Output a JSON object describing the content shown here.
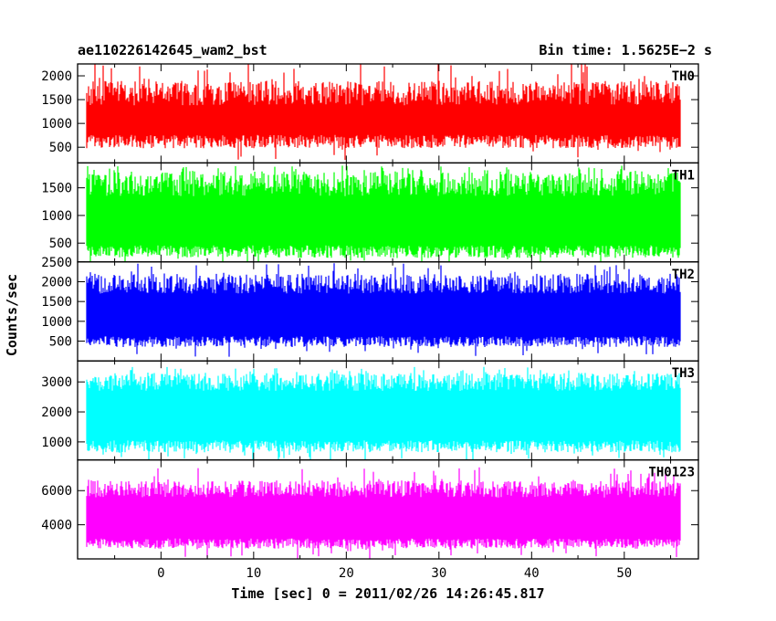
{
  "chart_data": {
    "type": "line",
    "title_left": "ae110226142645_wam2_bst",
    "title_right": "Bin time: 1.5625E−2 s",
    "ylabel": "Counts/sec",
    "xlabel": "Time [sec] 0 = 2011/02/26 14:26:45.817",
    "xlim": [
      -9,
      58
    ],
    "x_ticks": [
      0,
      10,
      20,
      30,
      40,
      50
    ],
    "data_range": [
      -8,
      56
    ],
    "panels": [
      {
        "name": "TH0",
        "color": "#ff0000",
        "ylim": [
          170,
          2250
        ],
        "yticks": [
          500,
          1000,
          1500,
          2000
        ],
        "base": [
          480,
          760
        ],
        "peak": [
          1380,
          1900
        ],
        "max": 2300
      },
      {
        "name": "TH1",
        "color": "#00ff00",
        "ylim": [
          160,
          1950
        ],
        "yticks": [
          500,
          1000,
          1500
        ],
        "base": [
          230,
          460
        ],
        "peak": [
          1350,
          1800
        ],
        "max": 1900
      },
      {
        "name": "TH2",
        "color": "#0000ff",
        "ylim": [
          0,
          2500
        ],
        "yticks": [
          500,
          1000,
          1500,
          2000,
          2500
        ],
        "base": [
          350,
          620
        ],
        "peak": [
          1700,
          2200
        ],
        "max": 2500
      },
      {
        "name": "TH3",
        "color": "#00ffff",
        "ylim": [
          400,
          3700
        ],
        "yticks": [
          1000,
          2000,
          3000
        ],
        "base": [
          650,
          1050
        ],
        "peak": [
          2700,
          3300
        ],
        "max": 3500
      },
      {
        "name": "TH0123",
        "color": "#ff00ff",
        "ylim": [
          2000,
          7800
        ],
        "yticks": [
          4000,
          6000
        ],
        "base": [
          2600,
          3200
        ],
        "peak": [
          5600,
          6600
        ],
        "max": 7400
      }
    ]
  }
}
